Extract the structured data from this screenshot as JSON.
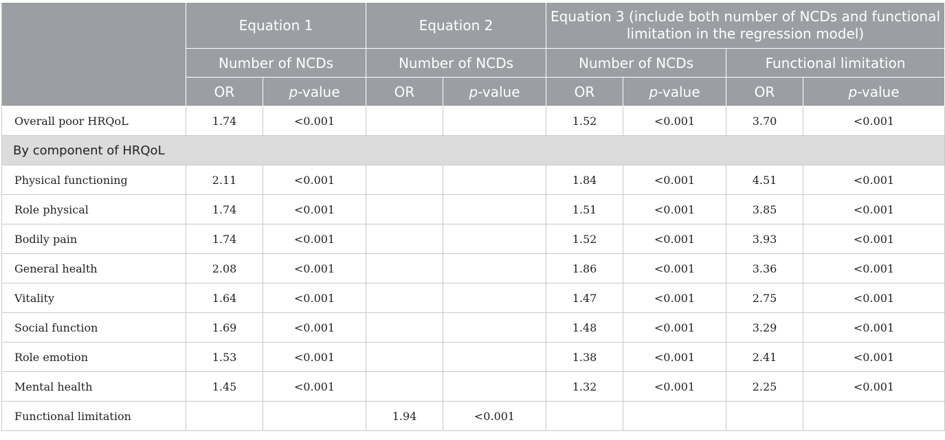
{
  "table": {
    "equations": [
      {
        "title": "Equation 1",
        "subtitle": "Number of NCDs"
      },
      {
        "title": "Equation 2",
        "subtitle": "Number of NCDs"
      },
      {
        "title": "Equation 3 (include both number of NCDs and functional limitation in the regression model)",
        "subtitles": [
          "Number of NCDs",
          "Functional limitation"
        ]
      }
    ],
    "col_or": "OR",
    "col_p_italic": "p",
    "col_p_rest": "-value",
    "section_label": "By component of HRQoL",
    "rows": [
      {
        "label": "Overall poor HRQoL",
        "v": [
          "1.74",
          "<0.001",
          "",
          "",
          "1.52",
          "<0.001",
          "3.70",
          "<0.001"
        ]
      },
      {
        "label": "Physical functioning",
        "v": [
          "2.11",
          "<0.001",
          "",
          "",
          "1.84",
          "<0.001",
          "4.51",
          "<0.001"
        ]
      },
      {
        "label": "Role physical",
        "v": [
          "1.74",
          "<0.001",
          "",
          "",
          "1.51",
          "<0.001",
          "3.85",
          "<0.001"
        ]
      },
      {
        "label": "Bodily pain",
        "v": [
          "1.74",
          "<0.001",
          "",
          "",
          "1.52",
          "<0.001",
          "3.93",
          "<0.001"
        ]
      },
      {
        "label": "General health",
        "v": [
          "2.08",
          "<0.001",
          "",
          "",
          "1.86",
          "<0.001",
          "3.36",
          "<0.001"
        ]
      },
      {
        "label": "Vitality",
        "v": [
          "1.64",
          "<0.001",
          "",
          "",
          "1.47",
          "<0.001",
          "2.75",
          "<0.001"
        ]
      },
      {
        "label": "Social function",
        "v": [
          "1.69",
          "<0.001",
          "",
          "",
          "1.48",
          "<0.001",
          "3.29",
          "<0.001"
        ]
      },
      {
        "label": "Role emotion",
        "v": [
          "1.53",
          "<0.001",
          "",
          "",
          "1.38",
          "<0.001",
          "2.41",
          "<0.001"
        ]
      },
      {
        "label": "Mental health",
        "v": [
          "1.45",
          "<0.001",
          "",
          "",
          "1.32",
          "<0.001",
          "2.25",
          "<0.001"
        ]
      },
      {
        "label": "Functional limitation",
        "v": [
          "",
          "",
          "1.94",
          "<0.001",
          "",
          "",
          "",
          ""
        ]
      }
    ]
  }
}
